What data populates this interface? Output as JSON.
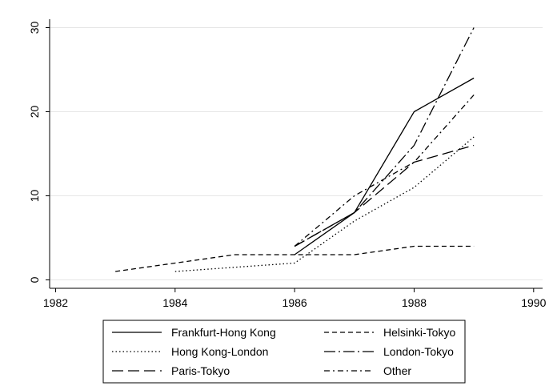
{
  "chart_data": {
    "type": "line",
    "xlim": [
      1981.9,
      1990.15
    ],
    "xticks": [
      1982,
      1984,
      1986,
      1988,
      1990
    ],
    "ylim": [
      -1,
      31
    ],
    "yticks": [
      0,
      10,
      20,
      30
    ],
    "grid": true,
    "series": [
      {
        "name": "Frankfurt-Hong Kong",
        "color": "#000000",
        "dash": "solid",
        "x": [
          1986,
          1987,
          1988,
          1989
        ],
        "values": [
          3,
          8,
          20,
          24
        ]
      },
      {
        "name": "Helsinki-Tokyo",
        "color": "#000000",
        "dash": "dash",
        "x": [
          1983,
          1984,
          1985,
          1986,
          1987,
          1988,
          1989
        ],
        "values": [
          1,
          2,
          3,
          3,
          3,
          4,
          4
        ]
      },
      {
        "name": "Hong Kong-London",
        "color": "#000000",
        "dash": "dot",
        "x": [
          1984,
          1985,
          1986,
          1987,
          1988,
          1989
        ],
        "values": [
          1,
          1.5,
          2,
          7,
          11,
          17
        ]
      },
      {
        "name": "London-Tokyo",
        "color": "#000000",
        "dash": "longdashdot",
        "x": [
          1986,
          1987,
          1988,
          1989
        ],
        "values": [
          4,
          8,
          16,
          30
        ]
      },
      {
        "name": "Paris-Tokyo",
        "color": "#000000",
        "dash": "longdash",
        "x": [
          1986,
          1987,
          1988,
          1989
        ],
        "values": [
          4,
          8,
          14,
          16
        ]
      },
      {
        "name": "Other",
        "color": "#000000",
        "dash": "dashdot",
        "x": [
          1986,
          1987,
          1988,
          1989
        ],
        "values": [
          4,
          10,
          14,
          22
        ]
      }
    ]
  }
}
